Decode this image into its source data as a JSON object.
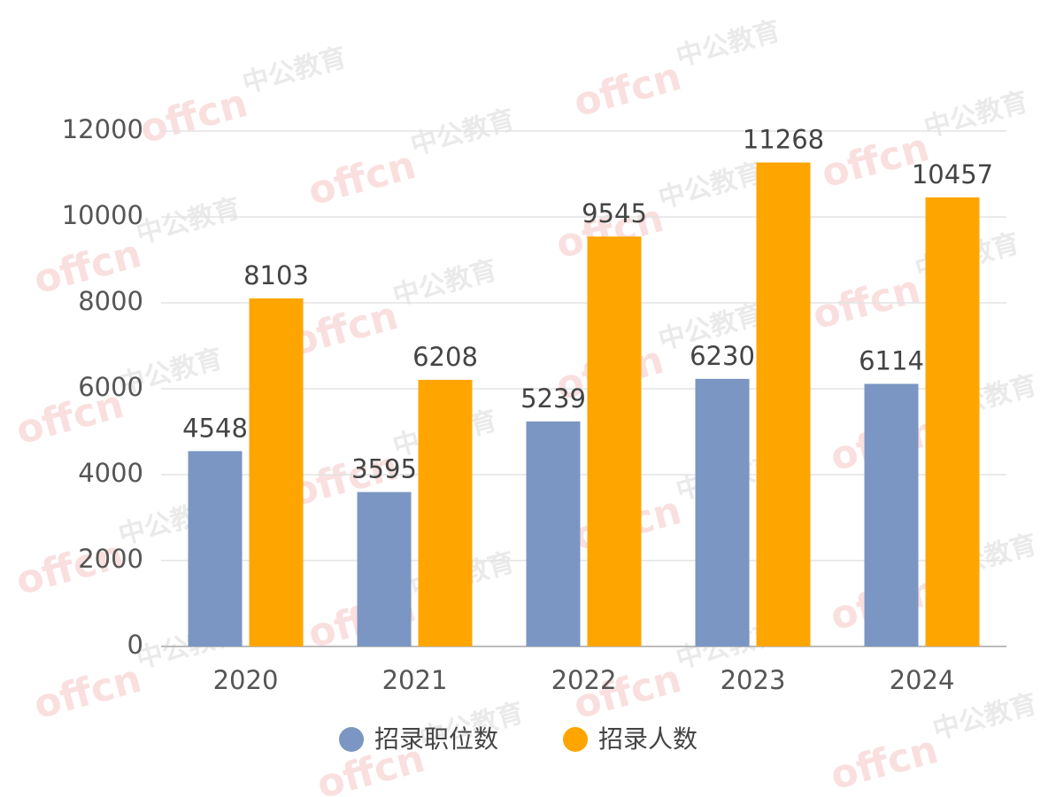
{
  "chart_data": {
    "type": "bar",
    "categories": [
      "2020",
      "2021",
      "2022",
      "2023",
      "2024"
    ],
    "series": [
      {
        "name": "招录职位数",
        "color": "#7b96c2",
        "values": [
          4548,
          3595,
          5239,
          6230,
          6114
        ]
      },
      {
        "name": "招录人数",
        "color": "#ffa500",
        "values": [
          8103,
          6208,
          9545,
          11268,
          10457
        ]
      }
    ],
    "ylim": [
      0,
      12000
    ],
    "yticks": [
      0,
      2000,
      4000,
      6000,
      8000,
      10000,
      12000
    ],
    "grid": true,
    "legend": "bottom"
  },
  "watermark": {
    "brand": "offcn",
    "name": "中公教育"
  }
}
